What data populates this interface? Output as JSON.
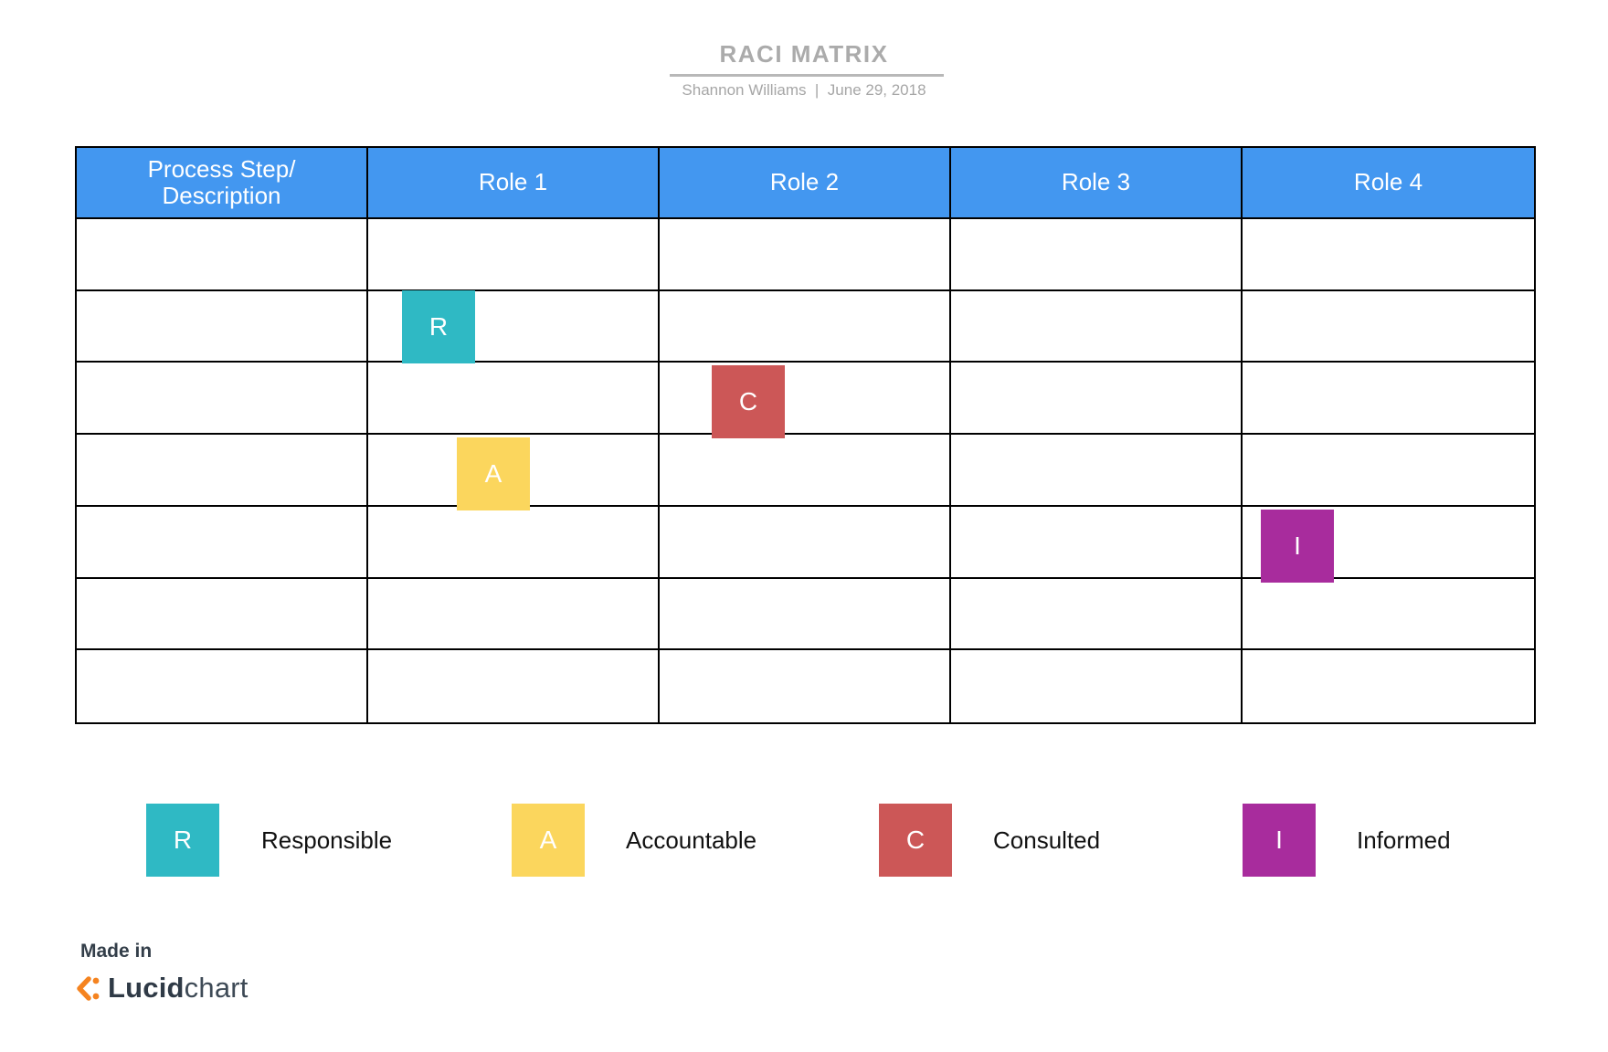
{
  "header": {
    "title": "RACI MATRIX",
    "subtitle": "Shannon Williams  |  June 29, 2018"
  },
  "table": {
    "header_fill": "#4397F0",
    "header_text_color": "#FFFFFF",
    "columns": [
      "Process Step/\nDescription",
      "Role 1",
      "Role 2",
      "Role 3",
      "Role 4"
    ],
    "body_row_count": 7,
    "column_count": 5
  },
  "markers": [
    {
      "letter": "R",
      "meaning": "Responsible",
      "color": "#2FB9C4",
      "body_row": 2,
      "column": "Role 1"
    },
    {
      "letter": "C",
      "meaning": "Consulted",
      "color": "#CC5757",
      "body_row": 3,
      "column": "Role 2"
    },
    {
      "letter": "A",
      "meaning": "Accountable",
      "color": "#FBD65D",
      "body_row": 4,
      "column": "Role 1"
    },
    {
      "letter": "I",
      "meaning": "Informed",
      "color": "#A82C9D",
      "body_row": 5,
      "column": "Role 4"
    }
  ],
  "legend": [
    {
      "letter": "R",
      "label": "Responsible",
      "color": "#2FB9C4"
    },
    {
      "letter": "A",
      "label": "Accountable",
      "color": "#FBD65D"
    },
    {
      "letter": "C",
      "label": "Consulted",
      "color": "#CC5757"
    },
    {
      "letter": "I",
      "label": "Informed",
      "color": "#A82C9D"
    }
  ],
  "footer": {
    "made_in": "Made in",
    "brand_bold": "Lucid",
    "brand_light": "chart",
    "icon_color": "#F5831F"
  }
}
